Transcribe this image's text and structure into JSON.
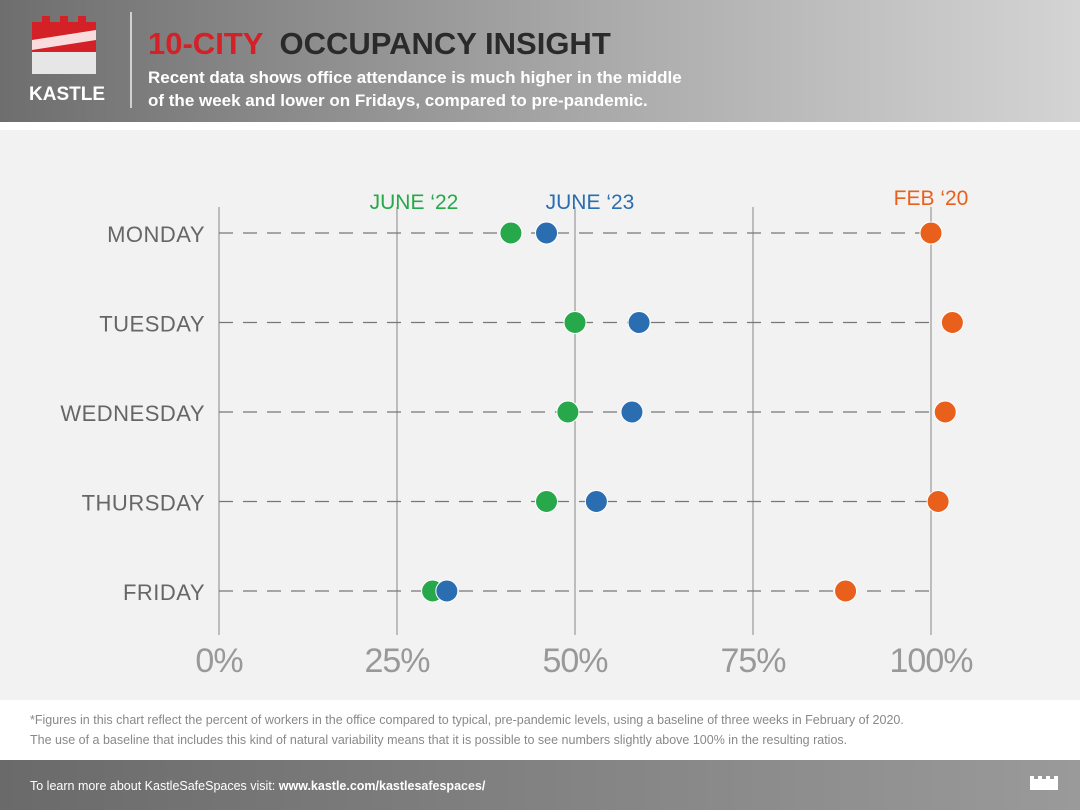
{
  "header": {
    "logo": "KASTLE",
    "title_highlight": "10-CITY",
    "title_rest": "OCCUPANCY INSIGHT",
    "subtitle_lines": [
      "Recent data shows office attendance is much higher in the middle",
      "of the week and lower on Fridays, compared to pre-pandemic."
    ]
  },
  "chart_data": {
    "type": "dot",
    "categories": [
      "MONDAY",
      "TUESDAY",
      "WEDNESDAY",
      "THURSDAY",
      "FRIDAY"
    ],
    "series": [
      {
        "name": "JUNE ‘22",
        "color": "#27a84a",
        "values": [
          41,
          50,
          49,
          46,
          30
        ]
      },
      {
        "name": "JUNE ‘23",
        "color": "#2a6db0",
        "values": [
          46,
          59,
          58,
          53,
          32
        ]
      },
      {
        "name": "FEB ‘20",
        "color": "#e8601c",
        "values": [
          100,
          103,
          102,
          101,
          88
        ]
      }
    ],
    "xlim": [
      0,
      100
    ],
    "xticks": [
      {
        "value": 0,
        "label": "0%"
      },
      {
        "value": 25,
        "label": "25%"
      },
      {
        "value": 50,
        "label": "50%"
      },
      {
        "value": 75,
        "label": "75%"
      },
      {
        "value": 100,
        "label": "100%"
      }
    ],
    "grid": true
  },
  "footnote_lines": [
    "*Figures in this chart reflect the percent of workers in the office compared to typical, pre-pandemic levels, using a baseline of three weeks in February of 2020.",
    "The use of a baseline that includes this kind of natural variability means that it is possible to see numbers slightly above 100% in the resulting ratios."
  ],
  "footer": {
    "text": "To learn more about KastleSafeSpaces visit: ",
    "link": "www.kastle.com/kastlesafespaces/"
  }
}
